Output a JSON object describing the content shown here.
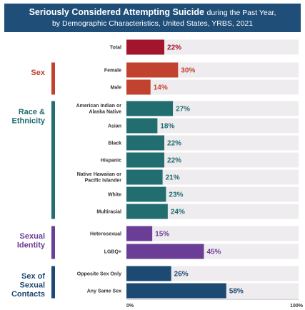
{
  "title": {
    "bold": "Seriously Considered Attempting Suicide",
    "rest": "during the Past Year,",
    "line2": "by Demographic Characteristics, United States, YRBS, 2021"
  },
  "colors": {
    "header_bg": "#1f4e79",
    "track": "#efecef",
    "total": "#a3152d",
    "sex": "#c1432f",
    "race": "#216d70",
    "identity": "#6a3d96",
    "contacts": "#1d4a72"
  },
  "chart_data": {
    "type": "bar",
    "orientation": "horizontal",
    "xlim": [
      0,
      100
    ],
    "x_ticks": [
      "0%",
      "100%"
    ],
    "groups": [
      {
        "label": "",
        "color_key": "total",
        "bars": [
          {
            "category": "Total",
            "value": 22,
            "label": "22%"
          }
        ]
      },
      {
        "label": "Sex",
        "color_key": "sex",
        "bars": [
          {
            "category": "Female",
            "value": 30,
            "label": "30%"
          },
          {
            "category": "Male",
            "value": 14,
            "label": "14%"
          }
        ]
      },
      {
        "label": "Race & Ethnicity",
        "color_key": "race",
        "bars": [
          {
            "category": "American Indian or Alaska Native",
            "value": 27,
            "label": "27%"
          },
          {
            "category": "Asian",
            "value": 18,
            "label": "18%"
          },
          {
            "category": "Black",
            "value": 22,
            "label": "22%"
          },
          {
            "category": "Hispanic",
            "value": 22,
            "label": "22%"
          },
          {
            "category": "Native Hawaiian or Pacific Islander",
            "value": 21,
            "label": "21%"
          },
          {
            "category": "White",
            "value": 23,
            "label": "23%"
          },
          {
            "category": "Multiracial",
            "value": 24,
            "label": "24%"
          }
        ]
      },
      {
        "label": "Sexual Identity",
        "color_key": "identity",
        "bars": [
          {
            "category": "Heterosexual",
            "value": 15,
            "label": "15%"
          },
          {
            "category": "LGBQ+",
            "value": 45,
            "label": "45%"
          }
        ]
      },
      {
        "label": "Sex of Sexual Contacts",
        "color_key": "contacts",
        "bars": [
          {
            "category": "Opposite Sex Only",
            "value": 26,
            "label": "26%"
          },
          {
            "category": "Any Same Sex",
            "value": 58,
            "label": "58%"
          }
        ]
      }
    ]
  }
}
